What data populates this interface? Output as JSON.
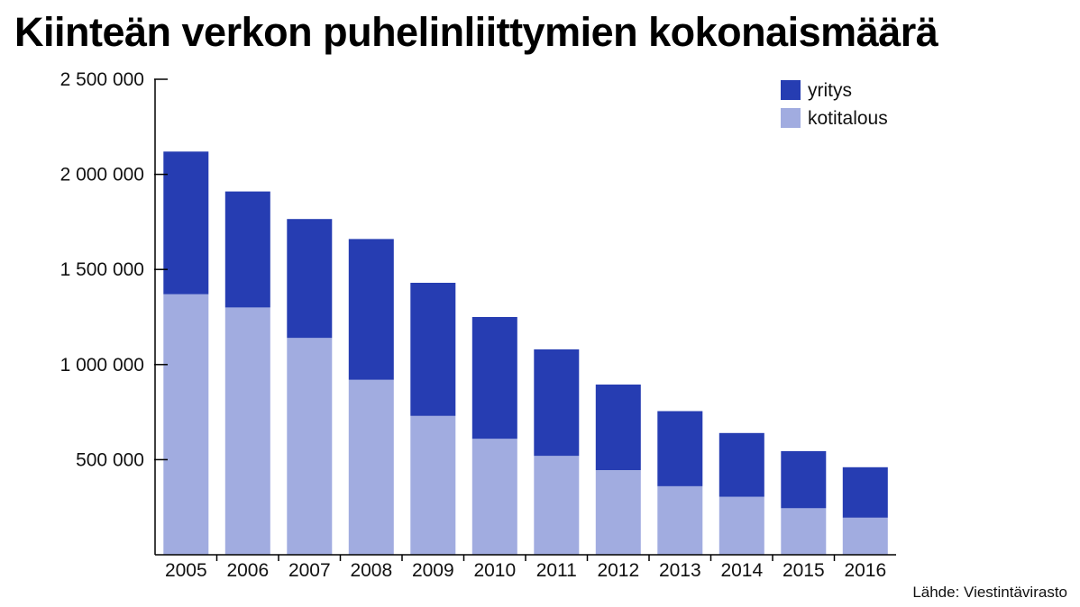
{
  "chart_data": {
    "type": "bar",
    "stacked": true,
    "title": "Kiinteän verkon puhelinliittymien kokonaismäärä",
    "categories": [
      "2005",
      "2006",
      "2007",
      "2008",
      "2009",
      "2010",
      "2011",
      "2012",
      "2013",
      "2014",
      "2015",
      "2016"
    ],
    "series": [
      {
        "name": "kotitalous",
        "color": "#a1ace0",
        "values": [
          1370000,
          1300000,
          1140000,
          920000,
          730000,
          610000,
          520000,
          445000,
          360000,
          305000,
          245000,
          195000
        ]
      },
      {
        "name": "yritys",
        "color": "#263db2",
        "values": [
          750000,
          610000,
          625000,
          740000,
          700000,
          640000,
          560000,
          450000,
          395000,
          335000,
          300000,
          265000
        ]
      }
    ],
    "ylim": [
      0,
      2500000
    ],
    "yticks": [
      500000,
      1000000,
      1500000,
      2000000,
      2500000
    ],
    "ytick_labels": [
      "500 000",
      "1 000 000",
      "1 500 000",
      "2 000 000",
      "2 500 000"
    ],
    "xlabel": "",
    "ylabel": "",
    "legend": {
      "placement": "top-right",
      "order": [
        "yritys",
        "kotitalous"
      ]
    },
    "grid": false,
    "source": "Lähde: Viestintävirasto"
  }
}
